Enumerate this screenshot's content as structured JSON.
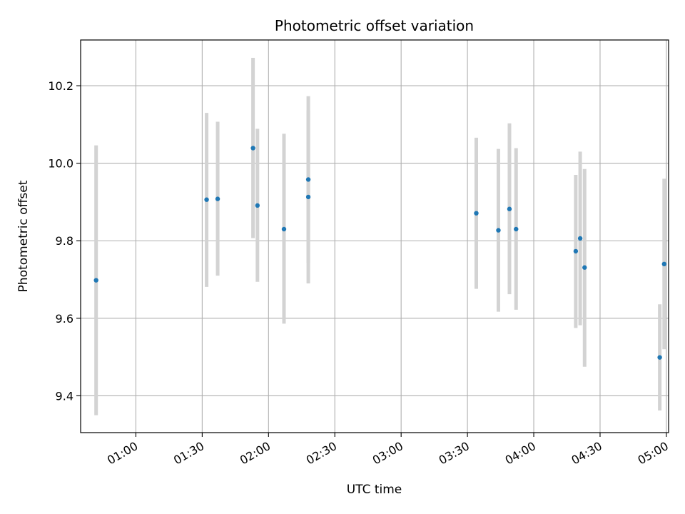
{
  "chart_data": {
    "type": "scatter",
    "title": "Photometric offset variation",
    "xlabel": "UTC time",
    "ylabel": "Photometric offset",
    "x_ticks": [
      "01:00",
      "01:30",
      "02:00",
      "02:30",
      "03:00",
      "03:30",
      "04:00",
      "04:30",
      "05:00"
    ],
    "y_ticks": [
      "9.4",
      "9.6",
      "9.8",
      "10.0",
      "10.2"
    ],
    "xlim": [
      "00:35",
      "05:01"
    ],
    "ylim": [
      9.305,
      10.318
    ],
    "grid": true,
    "marker_color": "#1f77b4",
    "errorbar_color": "#d3d3d3",
    "points": [
      {
        "time": "00:42",
        "value": 9.698,
        "err_low": 9.35,
        "err_high": 10.046
      },
      {
        "time": "01:32",
        "value": 9.906,
        "err_low": 9.681,
        "err_high": 10.13
      },
      {
        "time": "01:37",
        "value": 9.908,
        "err_low": 9.71,
        "err_high": 10.107
      },
      {
        "time": "01:53",
        "value": 10.039,
        "err_low": 9.807,
        "err_high": 10.272
      },
      {
        "time": "01:55",
        "value": 9.891,
        "err_low": 9.694,
        "err_high": 10.089
      },
      {
        "time": "02:07",
        "value": 9.83,
        "err_low": 9.586,
        "err_high": 10.076
      },
      {
        "time": "02:18",
        "value": 9.913,
        "err_low": 9.69,
        "err_high": 10.137
      },
      {
        "time": "02:18",
        "value": 9.958,
        "err_low": 9.743,
        "err_high": 10.173
      },
      {
        "time": "03:34",
        "value": 9.871,
        "err_low": 9.676,
        "err_high": 10.066
      },
      {
        "time": "03:44",
        "value": 9.827,
        "err_low": 9.617,
        "err_high": 10.037
      },
      {
        "time": "03:49",
        "value": 9.882,
        "err_low": 9.662,
        "err_high": 10.103
      },
      {
        "time": "03:52",
        "value": 9.83,
        "err_low": 9.622,
        "err_high": 10.039
      },
      {
        "time": "04:19",
        "value": 9.773,
        "err_low": 9.575,
        "err_high": 9.97
      },
      {
        "time": "04:21",
        "value": 9.806,
        "err_low": 9.582,
        "err_high": 10.03
      },
      {
        "time": "04:23",
        "value": 9.731,
        "err_low": 9.475,
        "err_high": 9.985
      },
      {
        "time": "04:57",
        "value": 9.499,
        "err_low": 9.362,
        "err_high": 9.636
      },
      {
        "time": "04:59",
        "value": 9.74,
        "err_low": 9.52,
        "err_high": 9.96
      }
    ]
  }
}
